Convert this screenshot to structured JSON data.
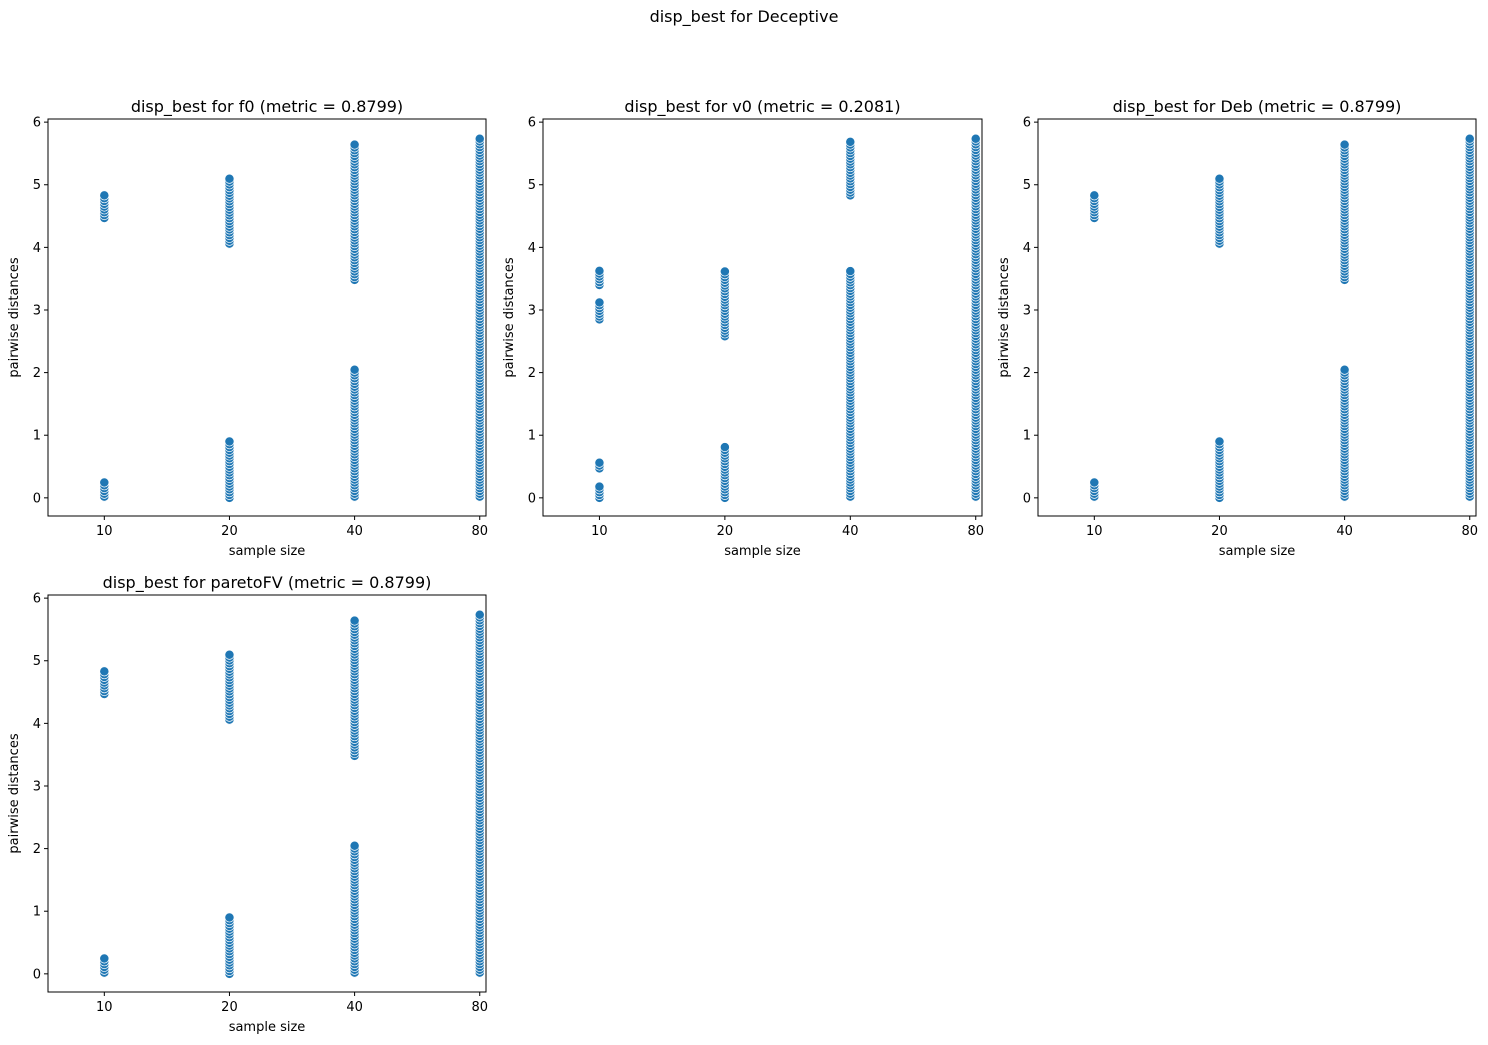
{
  "figure": {
    "suptitle": "disp_best for Deceptive",
    "point_color": "#1f77b4",
    "edge_color": "#ffffff"
  },
  "chart_data": [
    {
      "type": "scatter",
      "title": "disp_best for f0 (metric = 0.8799)",
      "xlabel": "sample size",
      "ylabel": "pairwise distances",
      "categories": [
        "10",
        "20",
        "40",
        "80"
      ],
      "yticks": [
        0,
        1,
        2,
        3,
        4,
        5,
        6
      ],
      "ylim": [
        -0.29,
        6.05
      ],
      "grid": false,
      "series": [
        {
          "x": "10",
          "ranges": [
            [
              0.02,
              0.26
            ],
            [
              4.47,
              4.87
            ]
          ]
        },
        {
          "x": "20",
          "ranges": [
            [
              0.0,
              0.94
            ],
            [
              4.06,
              5.13
            ]
          ]
        },
        {
          "x": "40",
          "ranges": [
            [
              0.02,
              2.05
            ],
            [
              3.48,
              5.66
            ]
          ]
        },
        {
          "x": "80",
          "ranges": [
            [
              0.02,
              5.76
            ]
          ]
        }
      ]
    },
    {
      "type": "scatter",
      "title": "disp_best for v0 (metric = 0.2081)",
      "xlabel": "sample size",
      "ylabel": "pairwise distances",
      "categories": [
        "10",
        "20",
        "40",
        "80"
      ],
      "yticks": [
        0,
        1,
        2,
        3,
        4,
        5,
        6
      ],
      "ylim": [
        -0.29,
        6.05
      ],
      "grid": false,
      "series": [
        {
          "x": "10",
          "ranges": [
            [
              0.0,
              0.2
            ],
            [
              0.47,
              0.57
            ],
            [
              2.85,
              3.15
            ],
            [
              3.4,
              3.63
            ]
          ]
        },
        {
          "x": "20",
          "ranges": [
            [
              0.0,
              0.82
            ],
            [
              2.58,
              3.63
            ]
          ]
        },
        {
          "x": "40",
          "ranges": [
            [
              0.02,
              3.63
            ],
            [
              4.83,
              5.7
            ]
          ]
        },
        {
          "x": "80",
          "ranges": [
            [
              0.02,
              5.76
            ]
          ]
        }
      ]
    },
    {
      "type": "scatter",
      "title": "disp_best for Deb (metric = 0.8799)",
      "xlabel": "sample size",
      "ylabel": "pairwise distances",
      "categories": [
        "10",
        "20",
        "40",
        "80"
      ],
      "yticks": [
        0,
        1,
        2,
        3,
        4,
        5,
        6
      ],
      "ylim": [
        -0.29,
        6.05
      ],
      "grid": false,
      "series": [
        {
          "x": "10",
          "ranges": [
            [
              0.02,
              0.26
            ],
            [
              4.47,
              4.87
            ]
          ]
        },
        {
          "x": "20",
          "ranges": [
            [
              0.0,
              0.94
            ],
            [
              4.06,
              5.13
            ]
          ]
        },
        {
          "x": "40",
          "ranges": [
            [
              0.02,
              2.05
            ],
            [
              3.48,
              5.66
            ]
          ]
        },
        {
          "x": "80",
          "ranges": [
            [
              0.02,
              5.76
            ]
          ]
        }
      ]
    },
    {
      "type": "scatter",
      "title": "disp_best for paretoFV (metric = 0.8799)",
      "xlabel": "sample size",
      "ylabel": "pairwise distances",
      "categories": [
        "10",
        "20",
        "40",
        "80"
      ],
      "yticks": [
        0,
        1,
        2,
        3,
        4,
        5,
        6
      ],
      "ylim": [
        -0.29,
        6.05
      ],
      "grid": false,
      "series": [
        {
          "x": "10",
          "ranges": [
            [
              0.02,
              0.26
            ],
            [
              4.47,
              4.87
            ]
          ]
        },
        {
          "x": "20",
          "ranges": [
            [
              0.0,
              0.94
            ],
            [
              4.06,
              5.13
            ]
          ]
        },
        {
          "x": "40",
          "ranges": [
            [
              0.02,
              2.05
            ],
            [
              3.48,
              5.66
            ]
          ]
        },
        {
          "x": "80",
          "ranges": [
            [
              0.02,
              5.76
            ]
          ]
        }
      ]
    }
  ]
}
